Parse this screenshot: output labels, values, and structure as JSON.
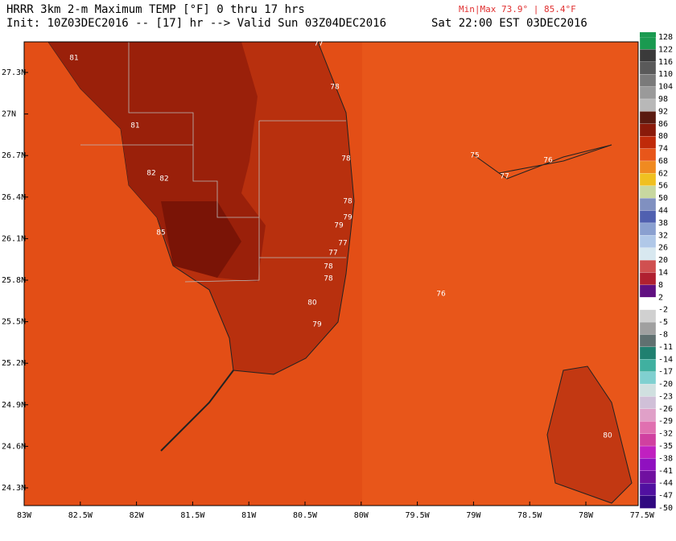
{
  "header": {
    "title": "HRRR 3km 2-m Maximum TEMP [°F] 0 thru 17 hrs",
    "init": "Init: 10Z03DEC2016 -- [17] hr --> Valid Sun 03Z04DEC2016",
    "minmax": "Min|Max 73.9° | 85.4°F",
    "local_time": "Sat 22:00 EST 03DEC2016"
  },
  "lat_labels": [
    "27.3N",
    "27N",
    "26.7N",
    "26.4N",
    "26.1N",
    "25.8N",
    "25.5N",
    "25.2N",
    "24.9N",
    "24.6N",
    "24.3N"
  ],
  "lon_labels": [
    "83W",
    "82.5W",
    "82W",
    "81.5W",
    "81W",
    "80.5W",
    "80W",
    "79.5W",
    "79W",
    "78.5W",
    "78W",
    "77.5W"
  ],
  "colorbar_labels": [
    "128",
    "122",
    "116",
    "110",
    "104",
    "98",
    "92",
    "86",
    "80",
    "74",
    "68",
    "62",
    "56",
    "50",
    "44",
    "38",
    "32",
    "26",
    "20",
    "14",
    "8",
    "2",
    "-2",
    "-5",
    "-8",
    "-11",
    "-14",
    "-17",
    "-20",
    "-23",
    "-26",
    "-29",
    "-32",
    "-35",
    "-38",
    "-41",
    "-44",
    "-47",
    "-50"
  ],
  "map_labels": [
    "81",
    "81",
    "82",
    "82",
    "85",
    "78",
    "78",
    "79",
    "79",
    "77",
    "77",
    "78",
    "78",
    "80",
    "79",
    "75",
    "77",
    "76",
    "80",
    "76",
    "77",
    "78"
  ]
}
